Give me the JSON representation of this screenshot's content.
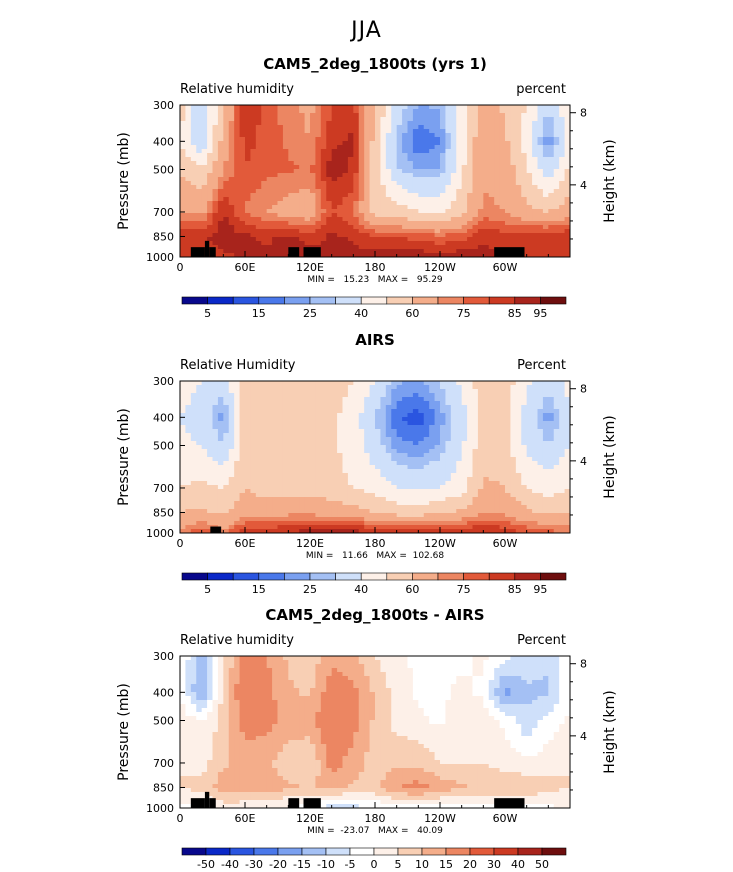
{
  "figure": {
    "title": "JJA"
  },
  "colors": {
    "scale_abs": [
      "#08088c",
      "#0a28c8",
      "#2a55e0",
      "#4a78ea",
      "#7aa0f0",
      "#a4c0f4",
      "#cfe0fa",
      "#fdf0e8",
      "#f8cfb4",
      "#f4ad8a",
      "#ec8662",
      "#e25a3a",
      "#cc3a22",
      "#a8241c",
      "#6e0e0e"
    ],
    "scale_diff": [
      "#08088c",
      "#0a28c8",
      "#2a55e0",
      "#4a78ea",
      "#7aa0f0",
      "#a4c0f4",
      "#cfe0fa",
      "#ffffff",
      "#fdf0e8",
      "#f8cfb4",
      "#f4ad8a",
      "#ec8662",
      "#e25a3a",
      "#cc3a22",
      "#a8241c",
      "#6e0e0e"
    ]
  },
  "chart_data": [
    {
      "type": "heatmap",
      "title": "CAM5_2deg_1800ts (yrs 1)",
      "left_label": "Relative humidity",
      "right_label": "percent",
      "ylabel": "Pressure (mb)",
      "y2label": "Height (km)",
      "x_ticks": [
        "0",
        "60E",
        "120E",
        "180",
        "120W",
        "60W"
      ],
      "y_ticks": [
        "300",
        "400",
        "500",
        "700",
        "850",
        "1000"
      ],
      "y2_ticks": [
        "8",
        "4"
      ],
      "stats": "MIN =   15.23   MAX =   95.29",
      "colorbar_labels": [
        "5",
        "15",
        "25",
        "40",
        "60",
        "75",
        "85",
        "95"
      ],
      "colorbar_levels": [
        0,
        5,
        10,
        15,
        20,
        25,
        30,
        40,
        50,
        60,
        70,
        75,
        80,
        85,
        90,
        95
      ],
      "xlim": [
        0,
        360
      ],
      "ylim": [
        300,
        1000
      ],
      "profiles": [
        {
          "lon": 0,
          "values": [
            55,
            50,
            58,
            70,
            85,
            82
          ]
        },
        {
          "lon": 20,
          "values": [
            30,
            30,
            52,
            68,
            84,
            80
          ]
        },
        {
          "lon": 40,
          "values": [
            60,
            64,
            70,
            86,
            88,
            84
          ]
        },
        {
          "lon": 60,
          "values": [
            85,
            82,
            80,
            74,
            86,
            86
          ]
        },
        {
          "lon": 80,
          "values": [
            78,
            78,
            76,
            70,
            84,
            86
          ]
        },
        {
          "lon": 100,
          "values": [
            72,
            74,
            76,
            66,
            86,
            90
          ]
        },
        {
          "lon": 120,
          "values": [
            68,
            70,
            74,
            64,
            82,
            88
          ]
        },
        {
          "lon": 140,
          "values": [
            80,
            84,
            88,
            80,
            86,
            88
          ]
        },
        {
          "lon": 160,
          "values": [
            82,
            86,
            84,
            76,
            84,
            87
          ]
        },
        {
          "lon": 180,
          "values": [
            62,
            56,
            56,
            56,
            80,
            88
          ]
        },
        {
          "lon": 200,
          "values": [
            35,
            28,
            30,
            56,
            80,
            88
          ]
        },
        {
          "lon": 220,
          "values": [
            25,
            15,
            25,
            50,
            78,
            88
          ]
        },
        {
          "lon": 240,
          "values": [
            26,
            20,
            25,
            48,
            76,
            88
          ]
        },
        {
          "lon": 260,
          "values": [
            45,
            44,
            48,
            58,
            78,
            88
          ]
        },
        {
          "lon": 280,
          "values": [
            66,
            70,
            68,
            72,
            84,
            87
          ]
        },
        {
          "lon": 300,
          "values": [
            58,
            62,
            66,
            70,
            82,
            84
          ]
        },
        {
          "lon": 320,
          "values": [
            50,
            45,
            52,
            62,
            84,
            80
          ]
        },
        {
          "lon": 340,
          "values": [
            32,
            20,
            32,
            60,
            84,
            82
          ]
        },
        {
          "lon": 360,
          "values": [
            48,
            45,
            52,
            66,
            85,
            82
          ]
        }
      ]
    },
    {
      "type": "heatmap",
      "title": "AIRS",
      "left_label": "Relative Humidity",
      "right_label": "Percent",
      "ylabel": "Pressure (mb)",
      "y2label": "Height (km)",
      "x_ticks": [
        "0",
        "60E",
        "120E",
        "180",
        "120W",
        "60W"
      ],
      "y_ticks": [
        "300",
        "400",
        "500",
        "700",
        "850",
        "1000"
      ],
      "y2_ticks": [
        "8",
        "4"
      ],
      "stats": "MIN =   11.66   MAX =  102.68",
      "colorbar_labels": [
        "5",
        "15",
        "25",
        "40",
        "60",
        "75",
        "85",
        "95"
      ],
      "colorbar_levels": [
        0,
        5,
        10,
        15,
        20,
        25,
        30,
        40,
        50,
        60,
        70,
        75,
        80,
        85,
        90,
        95
      ],
      "xlim": [
        0,
        360
      ],
      "ylim": [
        300,
        1000
      ],
      "profiles": [
        {
          "lon": 0,
          "values": [
            45,
            40,
            42,
            50,
            60,
            72
          ]
        },
        {
          "lon": 20,
          "values": [
            40,
            35,
            40,
            52,
            62,
            80
          ]
        },
        {
          "lon": 40,
          "values": [
            35,
            22,
            30,
            50,
            58,
            72
          ]
        },
        {
          "lon": 60,
          "values": [
            58,
            54,
            55,
            60,
            66,
            85
          ]
        },
        {
          "lon": 80,
          "values": [
            58,
            52,
            52,
            56,
            66,
            85
          ]
        },
        {
          "lon": 100,
          "values": [
            60,
            58,
            56,
            56,
            68,
            86
          ]
        },
        {
          "lon": 120,
          "values": [
            60,
            56,
            56,
            56,
            68,
            88
          ]
        },
        {
          "lon": 140,
          "values": [
            56,
            52,
            52,
            54,
            66,
            92
          ]
        },
        {
          "lon": 160,
          "values": [
            50,
            45,
            45,
            50,
            64,
            88
          ]
        },
        {
          "lon": 180,
          "values": [
            40,
            30,
            34,
            46,
            60,
            86
          ]
        },
        {
          "lon": 200,
          "values": [
            26,
            16,
            22,
            40,
            56,
            85
          ]
        },
        {
          "lon": 220,
          "values": [
            24,
            12,
            20,
            38,
            56,
            85
          ]
        },
        {
          "lon": 240,
          "values": [
            30,
            22,
            26,
            40,
            58,
            85
          ]
        },
        {
          "lon": 260,
          "values": [
            42,
            36,
            38,
            46,
            62,
            86
          ]
        },
        {
          "lon": 280,
          "values": [
            56,
            54,
            56,
            62,
            70,
            86
          ]
        },
        {
          "lon": 300,
          "values": [
            56,
            52,
            54,
            60,
            68,
            84
          ]
        },
        {
          "lon": 320,
          "values": [
            42,
            36,
            38,
            50,
            62,
            80
          ]
        },
        {
          "lon": 340,
          "values": [
            34,
            22,
            30,
            46,
            58,
            78
          ]
        },
        {
          "lon": 360,
          "values": [
            44,
            38,
            40,
            50,
            60,
            74
          ]
        }
      ]
    },
    {
      "type": "heatmap",
      "title": "CAM5_2deg_1800ts - AIRS",
      "left_label": "Relative humidity",
      "right_label": "Percent",
      "ylabel": "Pressure (mb)",
      "y2label": "Height (km)",
      "x_ticks": [
        "0",
        "60E",
        "120E",
        "180",
        "120W",
        "60W"
      ],
      "y_ticks": [
        "300",
        "400",
        "500",
        "700",
        "850",
        "1000"
      ],
      "y2_ticks": [
        "8",
        "4"
      ],
      "stats": "MIN =  -23.07   MAX =   40.09",
      "colorbar_labels": [
        "-50",
        "-40",
        "-30",
        "-20",
        "-15",
        "-10",
        "-5",
        "0",
        "5",
        "10",
        "15",
        "20",
        "30",
        "40",
        "50"
      ],
      "colorbar_levels": [
        -50,
        -40,
        -30,
        -20,
        -15,
        -10,
        -5,
        0,
        5,
        10,
        15,
        20,
        30,
        40,
        50
      ],
      "xlim": [
        0,
        360
      ],
      "ylim": [
        300,
        1000
      ],
      "profiles": [
        {
          "lon": 0,
          "values": [
            5,
            5,
            8,
            10,
            10,
            5
          ]
        },
        {
          "lon": 20,
          "values": [
            -8,
            -12,
            5,
            8,
            12,
            0
          ]
        },
        {
          "lon": 40,
          "values": [
            8,
            12,
            12,
            14,
            18,
            8
          ]
        },
        {
          "lon": 60,
          "values": [
            24,
            26,
            22,
            18,
            18,
            6
          ]
        },
        {
          "lon": 80,
          "values": [
            20,
            22,
            22,
            16,
            18,
            4
          ]
        },
        {
          "lon": 100,
          "values": [
            14,
            16,
            18,
            12,
            16,
            4
          ]
        },
        {
          "lon": 120,
          "values": [
            12,
            14,
            18,
            10,
            14,
            2
          ]
        },
        {
          "lon": 140,
          "values": [
            18,
            24,
            26,
            22,
            18,
            -4
          ]
        },
        {
          "lon": 160,
          "values": [
            16,
            22,
            22,
            18,
            14,
            -2
          ]
        },
        {
          "lon": 180,
          "values": [
            10,
            14,
            14,
            12,
            14,
            0
          ]
        },
        {
          "lon": 200,
          "values": [
            6,
            8,
            8,
            14,
            20,
            2
          ]
        },
        {
          "lon": 220,
          "values": [
            4,
            4,
            6,
            14,
            22,
            2
          ]
        },
        {
          "lon": 240,
          "values": [
            4,
            4,
            4,
            10,
            18,
            2
          ]
        },
        {
          "lon": 260,
          "values": [
            4,
            6,
            8,
            10,
            16,
            2
          ]
        },
        {
          "lon": 280,
          "values": [
            6,
            4,
            8,
            10,
            14,
            2
          ]
        },
        {
          "lon": 300,
          "values": [
            2,
            -12,
            4,
            8,
            14,
            4
          ]
        },
        {
          "lon": 320,
          "values": [
            -2,
            -6,
            -4,
            6,
            14,
            4
          ]
        },
        {
          "lon": 340,
          "values": [
            -4,
            -6,
            2,
            8,
            12,
            4
          ]
        },
        {
          "lon": 360,
          "values": [
            4,
            4,
            6,
            10,
            10,
            5
          ]
        }
      ]
    }
  ]
}
